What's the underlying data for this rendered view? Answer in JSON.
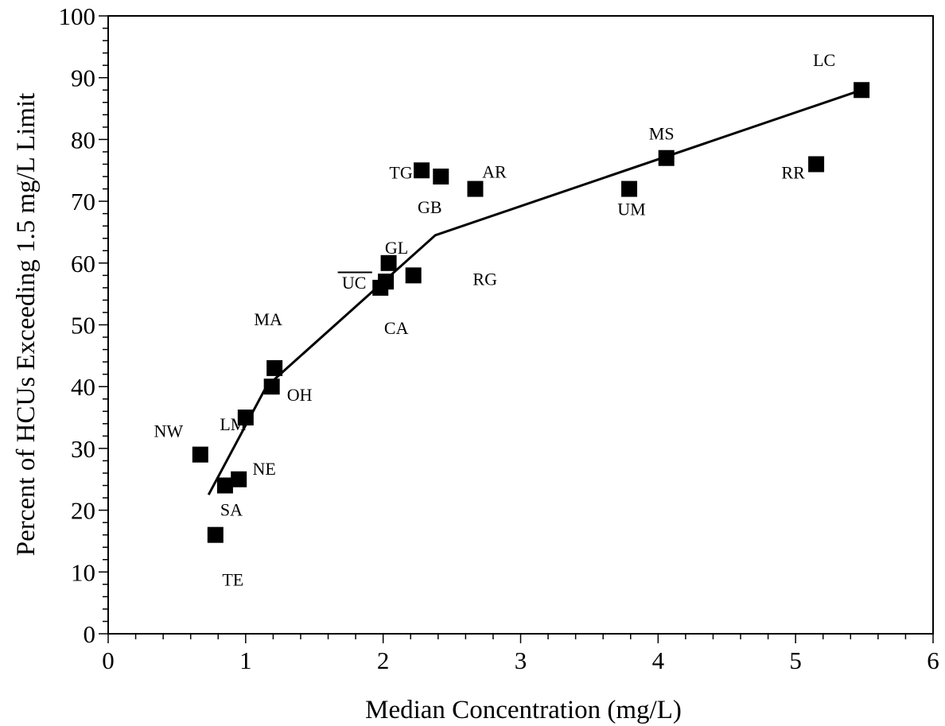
{
  "chart_data": {
    "type": "scatter",
    "xlabel": "Median Concentration (mg/L)",
    "ylabel": "Percent of HCUs Exceeding 1.5 mg/L Limit",
    "xlim": [
      0,
      6
    ],
    "ylim": [
      0,
      100
    ],
    "xticks": [
      0,
      1,
      2,
      3,
      4,
      5,
      6
    ],
    "yticks": [
      0,
      10,
      20,
      30,
      40,
      50,
      60,
      70,
      80,
      90,
      100
    ],
    "grid": false,
    "legend": "none",
    "marker_color": "#000000",
    "points": [
      {
        "label": "NW",
        "x": 0.67,
        "y": 29
      },
      {
        "label": "TE",
        "x": 0.78,
        "y": 16
      },
      {
        "label": "SA",
        "x": 0.85,
        "y": 24
      },
      {
        "label": "NE",
        "x": 0.95,
        "y": 25
      },
      {
        "label": "LM",
        "x": 1.0,
        "y": 35
      },
      {
        "label": "OH",
        "x": 1.19,
        "y": 40
      },
      {
        "label": "MA",
        "x": 1.21,
        "y": 43
      },
      {
        "label": "CA",
        "x": 1.98,
        "y": 56
      },
      {
        "label": "UC",
        "x": 2.02,
        "y": 57
      },
      {
        "label": "GL",
        "x": 2.04,
        "y": 60
      },
      {
        "label": "RG",
        "x": 2.22,
        "y": 58
      },
      {
        "label": "TG",
        "x": 2.28,
        "y": 75
      },
      {
        "label": "GB",
        "x": 2.42,
        "y": 74
      },
      {
        "label": "AR",
        "x": 2.67,
        "y": 72
      },
      {
        "label": "UM",
        "x": 3.79,
        "y": 72
      },
      {
        "label": "MS",
        "x": 4.06,
        "y": 77
      },
      {
        "label": "RR",
        "x": 5.15,
        "y": 76
      },
      {
        "label": "LC",
        "x": 5.48,
        "y": 88
      }
    ],
    "fit_line": [
      {
        "x": 0.73,
        "y": 22.5
      },
      {
        "x": 1.15,
        "y": 40
      },
      {
        "x": 2.38,
        "y": 64.5
      },
      {
        "x": 5.48,
        "y": 88
      }
    ],
    "annotation_lines": [
      {
        "label": "UC",
        "x1": 1.67,
        "y1": 58.5,
        "x2": 1.92,
        "y2": 58.5
      }
    ]
  }
}
